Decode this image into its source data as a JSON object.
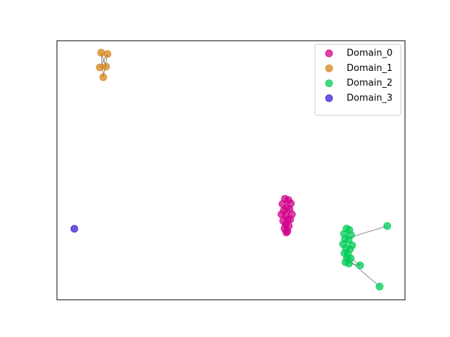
{
  "chart_data": {
    "type": "scatter",
    "xlim": [
      0,
      1
    ],
    "ylim": [
      0,
      1
    ],
    "legend": "upper right",
    "alpha": 0.75,
    "series": [
      {
        "name": "Domain_0",
        "color": "#d1008a",
        "x": [
          0.655,
          0.665,
          0.648,
          0.672,
          0.66,
          0.652,
          0.668,
          0.645,
          0.675,
          0.658,
          0.663,
          0.65,
          0.67,
          0.657,
          0.666,
          0.654,
          0.662,
          0.659
        ],
        "y": [
          0.39,
          0.385,
          0.37,
          0.372,
          0.355,
          0.345,
          0.35,
          0.33,
          0.33,
          0.325,
          0.31,
          0.305,
          0.31,
          0.29,
          0.285,
          0.275,
          0.265,
          0.26
        ],
        "edges": []
      },
      {
        "name": "Domain_1",
        "color": "#d4841a",
        "x": [
          0.127,
          0.145,
          0.123,
          0.141,
          0.133
        ],
        "y": [
          0.954,
          0.949,
          0.897,
          0.9,
          0.859
        ],
        "edges": [
          [
            0,
            3
          ],
          [
            1,
            2
          ],
          [
            0,
            4
          ],
          [
            1,
            4
          ],
          [
            2,
            3
          ]
        ]
      },
      {
        "name": "Domain_2",
        "color": "#00cc55",
        "x": [
          0.832,
          0.84,
          0.825,
          0.845,
          0.828,
          0.838,
          0.822,
          0.848,
          0.83,
          0.842,
          0.826,
          0.836,
          0.833,
          0.844,
          0.829,
          0.839,
          0.949,
          0.871,
          0.927
        ],
        "y": [
          0.275,
          0.27,
          0.255,
          0.25,
          0.235,
          0.23,
          0.215,
          0.21,
          0.2,
          0.195,
          0.18,
          0.175,
          0.16,
          0.16,
          0.145,
          0.14,
          0.285,
          0.133,
          0.051
        ],
        "edges": [
          [
            4,
            16
          ],
          [
            10,
            17
          ],
          [
            12,
            18
          ],
          [
            14,
            17
          ]
        ]
      },
      {
        "name": "Domain_3",
        "color": "#3a1fd6",
        "x": [
          0.05
        ],
        "y": [
          0.274
        ],
        "edges": []
      }
    ]
  }
}
